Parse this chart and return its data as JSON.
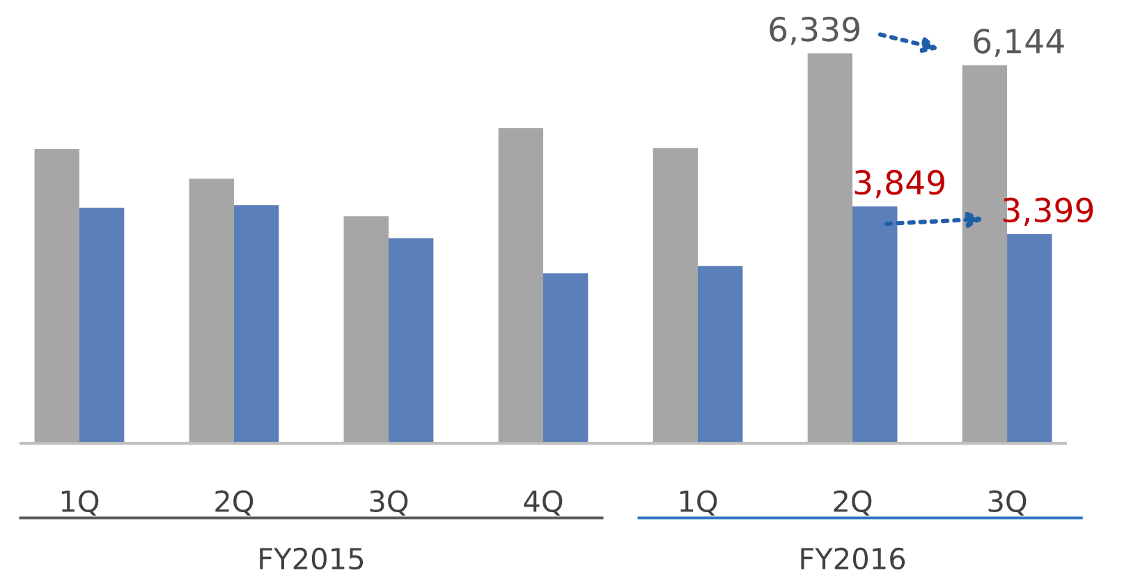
{
  "chart_data": {
    "type": "bar",
    "tick_labels": "x",
    "categories": [
      "1Q",
      "2Q",
      "3Q",
      "4Q",
      "1Q",
      "2Q",
      "3Q"
    ],
    "series": [
      {
        "color": "#a6a6a6",
        "values": [
          4780,
          4300,
          3690,
          5120,
          4800,
          6339,
          6144
        ],
        "value_labels": [
          null,
          null,
          null,
          null,
          null,
          "6,339",
          "6,144"
        ]
      },
      {
        "color": "#5a7fba",
        "values": [
          3830,
          3870,
          3330,
          2760,
          2880,
          3849,
          3399
        ],
        "value_labels": [
          null,
          null,
          null,
          null,
          null,
          "3,849",
          "3,399"
        ]
      }
    ],
    "annotations": [
      "FY2015",
      "FY2016"
    ],
    "grid": false,
    "legend": false
  }
}
